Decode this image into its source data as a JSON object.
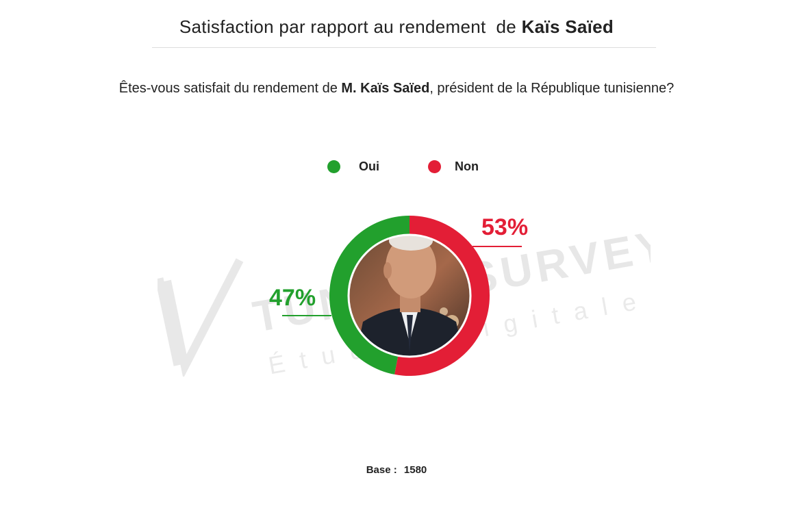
{
  "title": {
    "prefix": "Satisfaction par rapport au rendement  de ",
    "name": "Kaïs Saïed"
  },
  "question": {
    "prefix": "Êtes-vous satisfait du rendement de ",
    "name": "M. Kaïs Saïed",
    "suffix": ", président de la République tunisienne?"
  },
  "legend": [
    {
      "label": "Oui",
      "color": "#22a02d"
    },
    {
      "label": "Non",
      "color": "#e31e36"
    }
  ],
  "chart_data": {
    "type": "pie",
    "variant": "donut",
    "categories": [
      "Oui",
      "Non"
    ],
    "values": [
      47,
      53
    ],
    "labels": [
      "47%",
      "53%"
    ],
    "colors": [
      "#22a02d",
      "#e31e36"
    ],
    "center_image": "portrait-photo"
  },
  "watermark": {
    "brand": "TUNISIE SURVEY",
    "tagline": "Études digitales"
  },
  "footer": {
    "base_label": "Base :",
    "base_value": "1580"
  }
}
